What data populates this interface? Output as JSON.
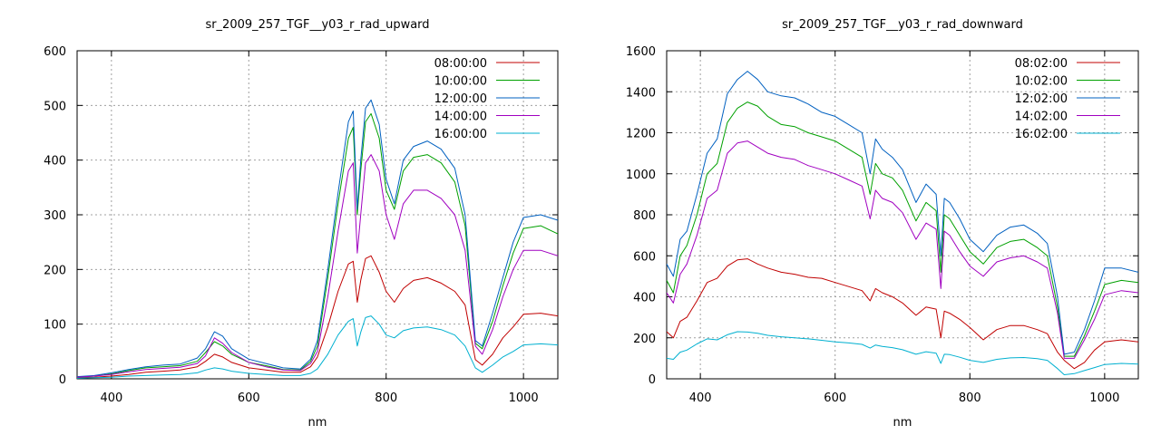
{
  "chart_data": [
    {
      "type": "line",
      "title": "sr_2009_257_TGF__y03_r_rad_upward",
      "xlabel": "nm",
      "ylabel": "",
      "xlim": [
        350,
        1050
      ],
      "ylim": [
        0,
        600
      ],
      "xticks": [
        400,
        600,
        800,
        1000
      ],
      "yticks": [
        0,
        100,
        200,
        300,
        400,
        500,
        600
      ],
      "grid": true,
      "legend_position": "top-right",
      "x": [
        350,
        375,
        400,
        425,
        450,
        475,
        500,
        525,
        537,
        550,
        562,
        575,
        600,
        625,
        650,
        675,
        690,
        700,
        715,
        730,
        745,
        752,
        758,
        763,
        770,
        778,
        790,
        800,
        812,
        825,
        840,
        860,
        880,
        900,
        915,
        930,
        940,
        955,
        970,
        985,
        1000,
        1025,
        1050
      ],
      "series": [
        {
          "name": "08:00:00",
          "color": "#c00000",
          "values": [
            2,
            3,
            5,
            8,
            12,
            14,
            16,
            22,
            32,
            45,
            40,
            30,
            20,
            16,
            12,
            12,
            22,
            40,
            95,
            160,
            210,
            215,
            140,
            180,
            220,
            225,
            195,
            160,
            140,
            165,
            180,
            185,
            175,
            160,
            135,
            35,
            25,
            45,
            75,
            95,
            118,
            120,
            115
          ]
        },
        {
          "name": "10:00:00",
          "color": "#00a000",
          "values": [
            3,
            5,
            9,
            15,
            20,
            22,
            24,
            32,
            48,
            68,
            60,
            45,
            30,
            24,
            17,
            16,
            32,
            60,
            185,
            320,
            440,
            460,
            300,
            380,
            470,
            485,
            440,
            345,
            310,
            380,
            405,
            410,
            395,
            360,
            280,
            65,
            55,
            105,
            170,
            230,
            275,
            280,
            265
          ]
        },
        {
          "name": "12:00:00",
          "color": "#0060c0",
          "values": [
            4,
            6,
            11,
            17,
            22,
            25,
            27,
            38,
            55,
            86,
            78,
            55,
            36,
            28,
            20,
            18,
            36,
            70,
            200,
            340,
            470,
            490,
            310,
            400,
            495,
            510,
            465,
            365,
            320,
            400,
            425,
            435,
            420,
            385,
            300,
            70,
            60,
            120,
            185,
            250,
            295,
            300,
            290
          ]
        },
        {
          "name": "14:00:00",
          "color": "#a000c0",
          "values": [
            3,
            5,
            8,
            13,
            17,
            19,
            21,
            28,
            42,
            75,
            65,
            48,
            30,
            22,
            16,
            15,
            28,
            50,
            150,
            270,
            380,
            395,
            230,
            300,
            395,
            410,
            380,
            300,
            255,
            320,
            345,
            345,
            330,
            300,
            235,
            60,
            45,
            90,
            150,
            200,
            235,
            235,
            225
          ]
        },
        {
          "name": "16:00:00",
          "color": "#00b0d0",
          "values": [
            1,
            2,
            3,
            5,
            6,
            7,
            8,
            11,
            16,
            20,
            18,
            14,
            10,
            8,
            6,
            6,
            10,
            18,
            45,
            80,
            105,
            110,
            60,
            85,
            112,
            115,
            100,
            80,
            75,
            88,
            93,
            95,
            90,
            80,
            60,
            20,
            12,
            25,
            40,
            50,
            62,
            64,
            62
          ]
        }
      ]
    },
    {
      "type": "line",
      "title": "sr_2009_257_TGF__y03_r_rad_downward",
      "xlabel": "nm",
      "ylabel": "",
      "xlim": [
        350,
        1050
      ],
      "ylim": [
        0,
        1600
      ],
      "xticks": [
        400,
        600,
        800,
        1000
      ],
      "yticks": [
        0,
        200,
        400,
        600,
        800,
        1000,
        1200,
        1400,
        1600
      ],
      "grid": true,
      "legend_position": "top-right",
      "x": [
        350,
        360,
        370,
        380,
        395,
        410,
        425,
        440,
        455,
        470,
        485,
        500,
        520,
        540,
        560,
        580,
        600,
        620,
        640,
        652,
        660,
        670,
        685,
        700,
        720,
        735,
        750,
        757,
        762,
        770,
        785,
        800,
        820,
        840,
        860,
        880,
        900,
        915,
        930,
        940,
        955,
        970,
        985,
        1000,
        1025,
        1050
      ],
      "series": [
        {
          "name": "08:02:00",
          "color": "#c00000",
          "values": [
            230,
            200,
            280,
            300,
            380,
            470,
            490,
            550,
            580,
            585,
            560,
            540,
            520,
            510,
            495,
            490,
            470,
            450,
            430,
            380,
            440,
            420,
            400,
            370,
            310,
            350,
            340,
            200,
            330,
            320,
            290,
            250,
            190,
            240,
            260,
            260,
            240,
            220,
            130,
            90,
            50,
            80,
            140,
            180,
            190,
            180
          ]
        },
        {
          "name": "10:02:00",
          "color": "#00a000",
          "values": [
            480,
            420,
            600,
            650,
            800,
            1000,
            1050,
            1250,
            1320,
            1350,
            1330,
            1280,
            1240,
            1230,
            1200,
            1180,
            1160,
            1120,
            1080,
            900,
            1050,
            1000,
            980,
            920,
            770,
            860,
            820,
            520,
            800,
            780,
            700,
            620,
            560,
            640,
            670,
            680,
            640,
            600,
            350,
            110,
            110,
            210,
            330,
            460,
            480,
            470
          ]
        },
        {
          "name": "12:02:00",
          "color": "#0060c0",
          "values": [
            560,
            500,
            680,
            720,
            900,
            1100,
            1170,
            1390,
            1460,
            1500,
            1460,
            1400,
            1380,
            1370,
            1340,
            1300,
            1280,
            1240,
            1200,
            1000,
            1170,
            1120,
            1080,
            1020,
            860,
            950,
            900,
            600,
            880,
            860,
            780,
            680,
            620,
            700,
            740,
            750,
            710,
            660,
            400,
            120,
            130,
            240,
            380,
            540,
            540,
            520
          ]
        },
        {
          "name": "14:02:00",
          "color": "#a000c0",
          "values": [
            420,
            370,
            510,
            560,
            700,
            880,
            920,
            1100,
            1150,
            1160,
            1130,
            1100,
            1080,
            1070,
            1040,
            1020,
            1000,
            970,
            940,
            780,
            920,
            880,
            860,
            810,
            680,
            760,
            730,
            440,
            720,
            700,
            620,
            550,
            500,
            570,
            590,
            600,
            570,
            540,
            320,
            100,
            100,
            190,
            290,
            410,
            430,
            420
          ]
        },
        {
          "name": "16:02:00",
          "color": "#00b0d0",
          "values": [
            100,
            95,
            130,
            140,
            170,
            195,
            190,
            215,
            230,
            228,
            222,
            212,
            205,
            200,
            195,
            188,
            180,
            175,
            168,
            150,
            165,
            158,
            152,
            142,
            120,
            132,
            125,
            75,
            120,
            118,
            105,
            90,
            80,
            95,
            102,
            104,
            98,
            90,
            50,
            20,
            25,
            40,
            55,
            70,
            75,
            72
          ]
        }
      ]
    }
  ]
}
